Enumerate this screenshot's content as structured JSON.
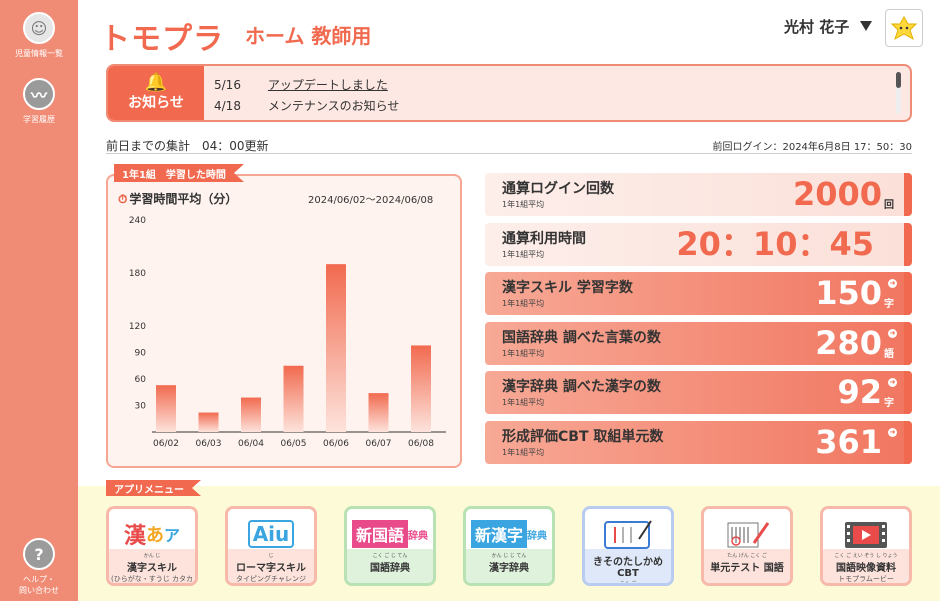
{
  "sidebar": {
    "items": [
      {
        "label": "児童情報一覧",
        "icon": "smiley-icon"
      },
      {
        "label": "学習履歴",
        "icon": "chart-line-icon"
      }
    ],
    "help": {
      "line1": "ヘルプ・",
      "line2": "問い合わせ",
      "icon": "question-icon"
    }
  },
  "header": {
    "logo": "トモプラ",
    "title": "ホーム  教師用",
    "user": "光村 花子"
  },
  "notice": {
    "label": "お知らせ",
    "items": [
      {
        "date": "5/16",
        "text": "アップデートしました"
      },
      {
        "date": "4/18",
        "text": "メンテナンスのお知らせ"
      }
    ]
  },
  "summary": {
    "updated": "前日までの集計　04：00更新",
    "last_login": "前回ログイン：2024年6月8日  17：50：30"
  },
  "chart_panel": {
    "tag": "1年1組　学習した時間",
    "title": "学習時間平均（分）",
    "range": "2024/06/02～2024/06/08"
  },
  "chart_data": {
    "type": "bar",
    "categories": [
      "06/02",
      "06/03",
      "06/04",
      "06/05",
      "06/06",
      "06/07",
      "06/08"
    ],
    "values": [
      53,
      22,
      39,
      75,
      190,
      44,
      98
    ],
    "ylim": [
      0,
      240
    ],
    "yticks": [
      30,
      60,
      90,
      120,
      180,
      240
    ],
    "colors": {
      "bar_top": "#f16a4f",
      "bar_bottom": "#fde3dc"
    }
  },
  "stats": [
    {
      "name": "通算ログイン回数",
      "sub": "1年1組平均",
      "value": "2000",
      "unit": "回",
      "style": "light"
    },
    {
      "name": "通算利用時間",
      "sub": "1年1組平均",
      "value": "20：10：45",
      "unit": "",
      "style": "light"
    },
    {
      "name": "漢字スキル 学習字数",
      "sub": "1年1組平均",
      "value": "150",
      "unit": "字",
      "style": "dark"
    },
    {
      "name": "国語辞典 調べた言葉の数",
      "sub": "1年1組平均",
      "value": "280",
      "unit": "語",
      "style": "dark"
    },
    {
      "name": "漢字辞典 調べた漢字の数",
      "sub": "1年1組平均",
      "value": "92",
      "unit": "字",
      "style": "dark"
    },
    {
      "name": "形成評価CBT 取組単元数",
      "sub": "1年1組平均",
      "value": "361",
      "unit": "",
      "style": "dark"
    }
  ],
  "app_menu": {
    "tag": "アプリメニュー",
    "apps": [
      {
        "icon_text": "漢あア",
        "ruby": "かん じ",
        "label": "漢字スキル",
        "small": "(ひらがな・すうじ  カタカナ)",
        "theme": "pink"
      },
      {
        "icon_text": "Aiu",
        "ruby": "じ",
        "label": "ローマ字スキル",
        "small": "タイピングチャレンジ",
        "theme": "pink"
      },
      {
        "icon_text": "新国語辞典",
        "ruby": "こく ご  じ てん",
        "label": "国語辞典",
        "small": "",
        "theme": "green"
      },
      {
        "icon_text": "新漢字辞典",
        "ruby": "かん じ  じ てん",
        "label": "漢字辞典",
        "small": "",
        "theme": "green"
      },
      {
        "icon_text": "CBT",
        "ruby": "",
        "label": "きそのたしかめ CBT",
        "small": "国語",
        "theme": "blue"
      },
      {
        "icon_text": "TEST",
        "ruby": "たん げん       こく ご",
        "label": "単元テスト 国語",
        "small": "",
        "theme": "pink"
      },
      {
        "icon_text": "MOVIE",
        "ruby": "こく ご えい ぞう し りょう",
        "label": "国語映像資料",
        "small": "トモプラムービー",
        "theme": "pink"
      }
    ]
  }
}
